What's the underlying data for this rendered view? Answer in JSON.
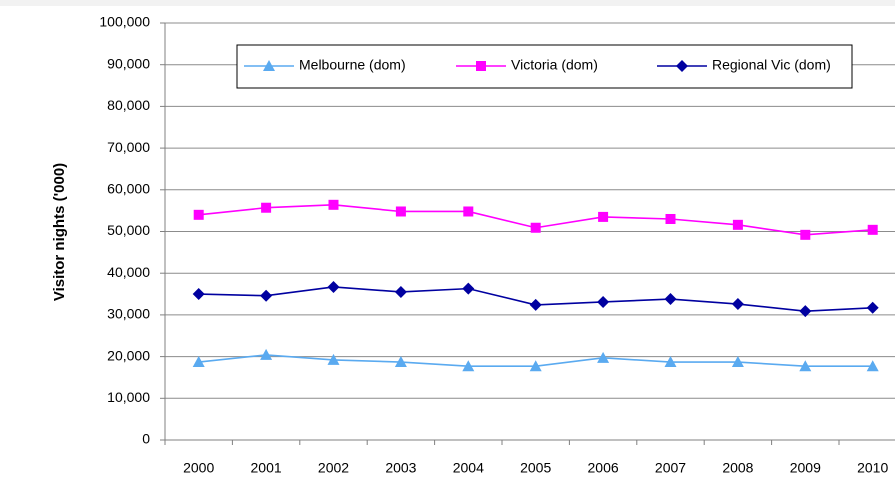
{
  "chart_data": {
    "type": "line",
    "y_label": "Visitor nights ('000)",
    "categories": [
      "2000",
      "2001",
      "2002",
      "2003",
      "2004",
      "2005",
      "2006",
      "2007",
      "2008",
      "2009",
      "2010"
    ],
    "series": [
      {
        "name": "Melbourne (dom)",
        "color": "#5aaaf0",
        "marker": "triangle",
        "values": [
          18700,
          20400,
          19200,
          18700,
          17700,
          17700,
          19700,
          18700,
          18700,
          17700,
          17700
        ]
      },
      {
        "name": "Victoria (dom)",
        "color": "#ff00ff",
        "marker": "square",
        "values": [
          54000,
          55700,
          56400,
          54800,
          54800,
          50900,
          53500,
          53000,
          51600,
          49200,
          50400
        ]
      },
      {
        "name": "Regional Vic (dom)",
        "color": "#0000a0",
        "marker": "diamond",
        "values": [
          35000,
          34600,
          36700,
          35500,
          36300,
          32400,
          33100,
          33800,
          32600,
          30900,
          31700
        ]
      }
    ],
    "ylim": [
      0,
      100000
    ],
    "yticks": [
      0,
      {
        "value": 10000,
        "label": "10,000"
      },
      {
        "value": 20000,
        "label": "20,000"
      },
      {
        "value": 30000,
        "label": "30,000"
      },
      {
        "value": 40000,
        "label": "40,000"
      },
      {
        "value": 50000,
        "label": "50,000"
      },
      {
        "value": 60000,
        "label": "60,000"
      },
      {
        "value": 70000,
        "label": "70,000"
      },
      {
        "value": 80000,
        "label": "80,000"
      },
      {
        "value": 90000,
        "label": "90,000"
      },
      {
        "value": 100000,
        "label": "100,000"
      }
    ],
    "grid": true,
    "legend_position": "top"
  }
}
